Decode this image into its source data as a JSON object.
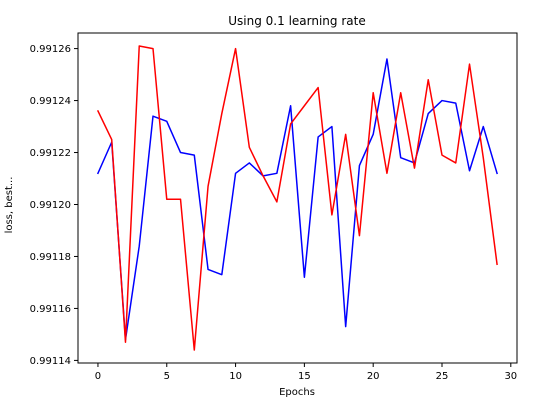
{
  "chart_data": {
    "type": "line",
    "title": "Using 0.1 learning rate",
    "xlabel": "Epochs",
    "ylabel": "loss, best...",
    "xlim": [
      -1.45,
      30.45
    ],
    "ylim": [
      0.991139,
      0.991266
    ],
    "xticks": [
      "0",
      "5",
      "10",
      "15",
      "20",
      "25",
      "30"
    ],
    "yticks": [
      "0.99114",
      "0.99116",
      "0.99118",
      "0.99120",
      "0.99122",
      "0.99124",
      "0.99126"
    ],
    "grid": false,
    "legend": "none",
    "x": [
      0,
      1,
      2,
      3,
      4,
      5,
      6,
      7,
      8,
      9,
      10,
      11,
      12,
      13,
      14,
      15,
      16,
      17,
      18,
      19,
      20,
      21,
      22,
      23,
      24,
      25,
      26,
      27,
      28,
      29
    ],
    "series": [
      {
        "color": "#0000ff",
        "values": [
          0.991212,
          0.991224,
          0.991148,
          0.991184,
          0.991234,
          0.991232,
          0.99122,
          0.991219,
          0.991175,
          0.991173,
          0.991212,
          0.991216,
          0.991211,
          0.991212,
          0.991238,
          0.991172,
          0.991226,
          0.99123,
          0.991153,
          0.991215,
          0.991227,
          0.991256,
          0.991218,
          0.991216,
          0.991235,
          0.99124,
          0.991239,
          0.991213,
          0.99123,
          0.991212
        ]
      },
      {
        "color": "#ff0000",
        "values": [
          0.991236,
          0.991225,
          0.991147,
          0.991261,
          0.99126,
          0.991202,
          0.991202,
          0.991144,
          0.991207,
          0.991235,
          0.99126,
          0.991222,
          0.991211,
          0.991201,
          0.991231,
          0.991238,
          0.991245,
          0.991196,
          0.991227,
          0.991188,
          0.991243,
          0.991212,
          0.991243,
          0.991214,
          0.991248,
          0.991219,
          0.991216,
          0.991254,
          0.991218,
          0.991177
        ]
      }
    ]
  }
}
